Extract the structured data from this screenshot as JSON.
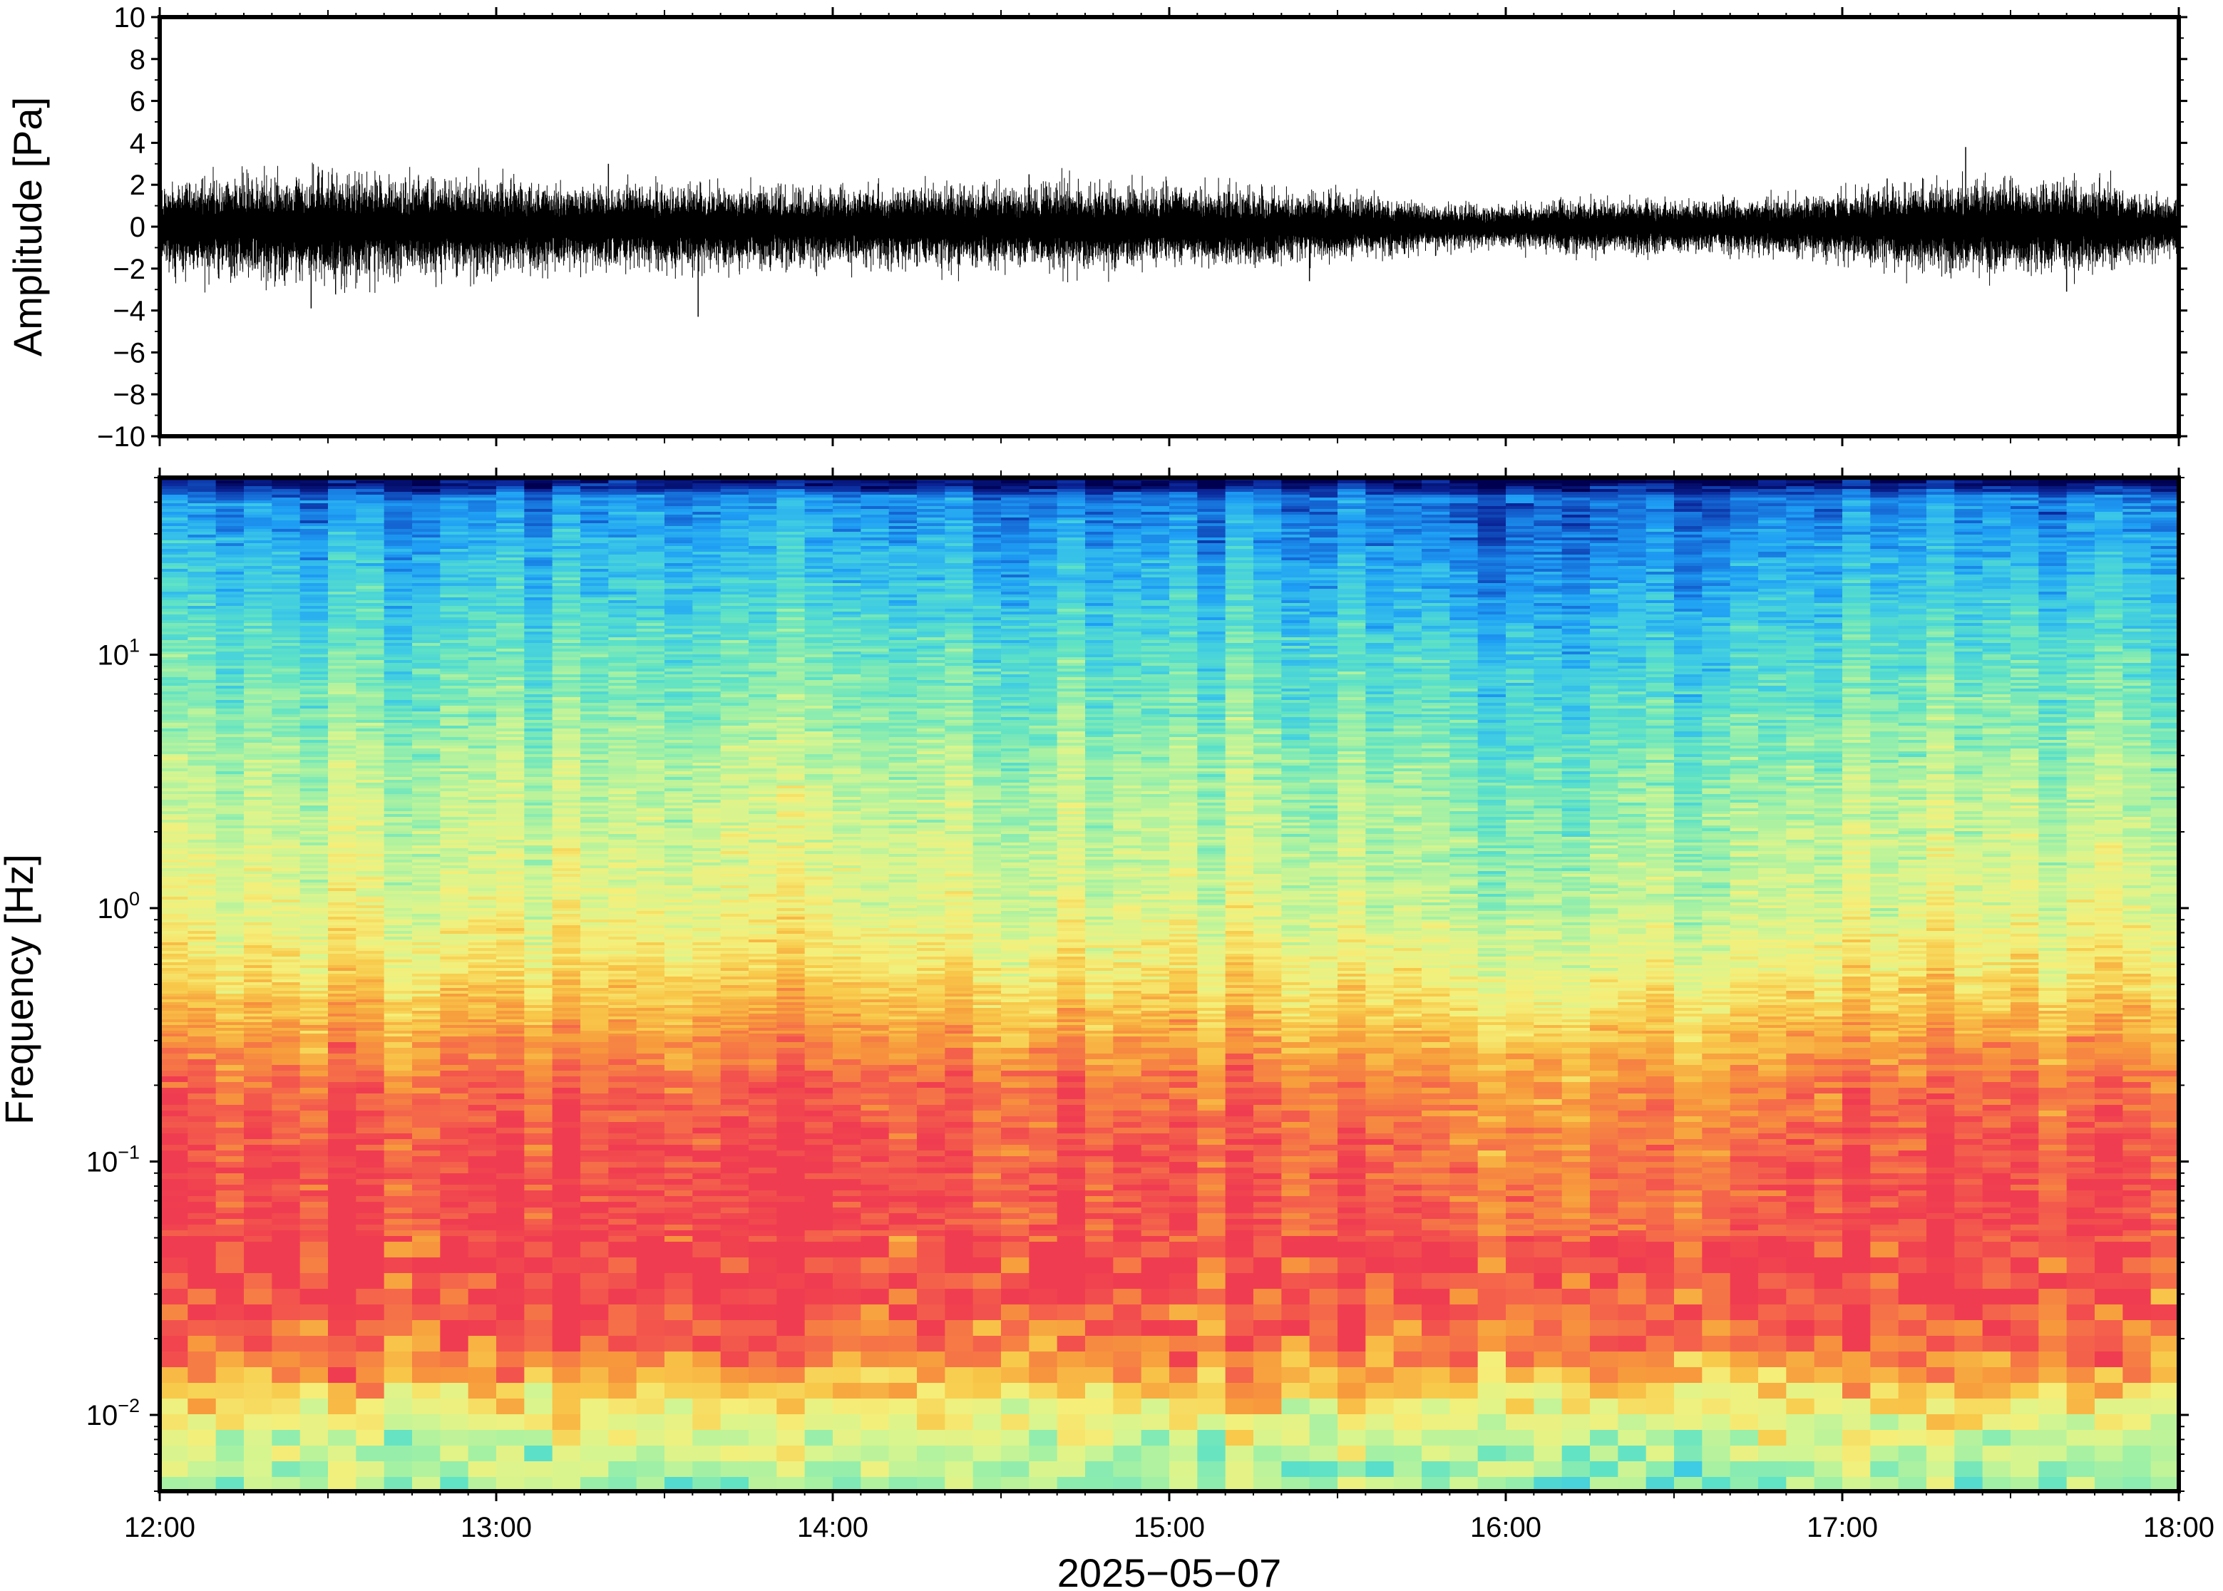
{
  "chart_data": [
    {
      "type": "line",
      "title": "",
      "xlabel": "",
      "ylabel": "Amplitude [Pa]",
      "ylim": [
        -10,
        10
      ],
      "yticks": [
        10,
        8,
        6,
        4,
        2,
        0,
        -2,
        -4,
        -6,
        -8,
        -10
      ],
      "ytick_labels": [
        "10",
        "8",
        "6",
        "4",
        "2",
        "0",
        "−2",
        "−4",
        "−6",
        "−8",
        "−10"
      ],
      "xlim": [
        "12:00",
        "18:00"
      ],
      "grid": false,
      "series": [
        {
          "color": "#000000",
          "x": [
            "12:00",
            "12:15",
            "12:30",
            "12:45",
            "13:00",
            "13:15",
            "13:30",
            "13:45",
            "14:00",
            "14:15",
            "14:30",
            "14:45",
            "15:00",
            "15:15",
            "15:30",
            "15:45",
            "16:00",
            "16:15",
            "16:30",
            "16:45",
            "17:00",
            "17:15",
            "17:30",
            "17:45",
            "18:00"
          ],
          "typical_envelope": [
            1.5,
            1.7,
            1.8,
            1.6,
            1.5,
            1.4,
            1.4,
            1.3,
            1.3,
            1.3,
            1.4,
            1.4,
            1.3,
            1.2,
            1.1,
            0.8,
            0.7,
            0.9,
            0.9,
            0.9,
            1.1,
            1.4,
            1.6,
            1.4,
            0.9
          ],
          "peaks": [
            {
              "x": "12:29",
              "y": 2.7
            },
            {
              "x": "12:27",
              "y": -3.9
            },
            {
              "x": "13:20",
              "y": 3.0
            },
            {
              "x": "13:36",
              "y": -4.3
            },
            {
              "x": "14:35",
              "y": 2.5
            },
            {
              "x": "15:25",
              "y": -2.6
            },
            {
              "x": "17:08",
              "y": 2.3
            },
            {
              "x": "17:22",
              "y": 3.8
            },
            {
              "x": "17:40",
              "y": -3.1
            }
          ]
        }
      ]
    },
    {
      "type": "heatmap",
      "title": "",
      "xlabel": "2025−05−07",
      "ylabel": "Frequency [Hz]",
      "y_scale": "log",
      "ylim": [
        0.005,
        50
      ],
      "yticks": [
        {
          "base": "10",
          "exp": "1"
        },
        {
          "base": "10",
          "exp": "0"
        },
        {
          "base": "10",
          "exp": "−1"
        },
        {
          "base": "10",
          "exp": "−2"
        }
      ],
      "xticks": [
        "12:00",
        "13:00",
        "14:00",
        "15:00",
        "16:00",
        "17:00",
        "18:00"
      ],
      "xlim": [
        "12:00",
        "18:00"
      ],
      "grid": false,
      "colormap": [
        "#f03c50",
        "#f56a4a",
        "#f79a3c",
        "#f8c94a",
        "#f5ef7a",
        "#d6f590",
        "#9ff0a6",
        "#5ee2c6",
        "#3cc9e6",
        "#1e9ef5",
        "#1464d2",
        "#0a2496",
        "#000050"
      ],
      "description_bands_hz": {
        "top_edge_dark_blue": [
          45,
          50
        ],
        "blue_cyan": [
          10,
          45
        ],
        "green_yellow": [
          0.8,
          10
        ],
        "orange": [
          0.3,
          0.8
        ],
        "red_pink": [
          0.025,
          0.3
        ],
        "yellow_green": [
          0.01,
          0.025
        ],
        "green_cyan": [
          0.005,
          0.01
        ]
      },
      "note_quieter_period": [
        "15:20",
        "17:00"
      ]
    }
  ]
}
